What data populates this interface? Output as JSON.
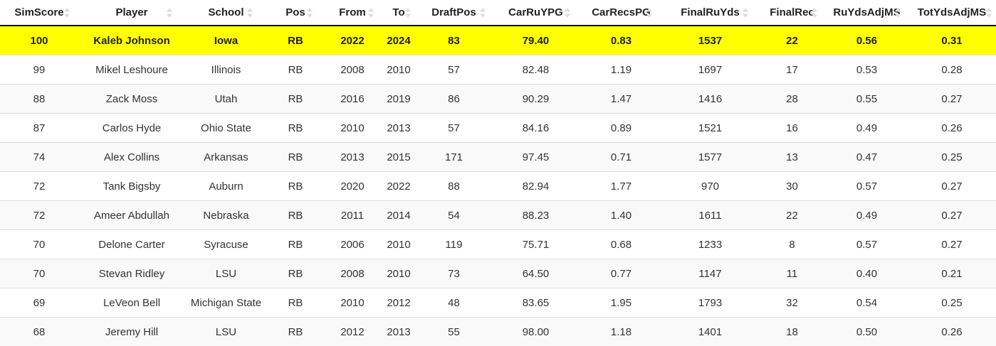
{
  "table": {
    "columns": [
      {
        "key": "simscore",
        "label": "SimScore"
      },
      {
        "key": "player",
        "label": "Player"
      },
      {
        "key": "school",
        "label": "School"
      },
      {
        "key": "pos",
        "label": "Pos"
      },
      {
        "key": "from",
        "label": "From"
      },
      {
        "key": "to",
        "label": "To"
      },
      {
        "key": "draftpos",
        "label": "DraftPos"
      },
      {
        "key": "carruypg",
        "label": "CarRuYPG"
      },
      {
        "key": "carrecspg",
        "label": "CarRecsPG"
      },
      {
        "key": "finalruyds",
        "label": "FinalRuYds"
      },
      {
        "key": "finalrec",
        "label": "FinalRec"
      },
      {
        "key": "ruydsadjms",
        "label": "RuYdsAdjMS"
      },
      {
        "key": "totydsadjms",
        "label": "TotYdsAdjMS"
      }
    ],
    "highlight_color": "#ffff00",
    "rows": [
      [
        "100",
        "Kaleb Johnson",
        "Iowa",
        "RB",
        "2022",
        "2024",
        "83",
        "79.40",
        "0.83",
        "1537",
        "22",
        "0.56",
        "0.31"
      ],
      [
        "99",
        "Mikel Leshoure",
        "Illinois",
        "RB",
        "2008",
        "2010",
        "57",
        "82.48",
        "1.19",
        "1697",
        "17",
        "0.53",
        "0.28"
      ],
      [
        "88",
        "Zack Moss",
        "Utah",
        "RB",
        "2016",
        "2019",
        "86",
        "90.29",
        "1.47",
        "1416",
        "28",
        "0.55",
        "0.27"
      ],
      [
        "87",
        "Carlos Hyde",
        "Ohio State",
        "RB",
        "2010",
        "2013",
        "57",
        "84.16",
        "0.89",
        "1521",
        "16",
        "0.49",
        "0.26"
      ],
      [
        "74",
        "Alex Collins",
        "Arkansas",
        "RB",
        "2013",
        "2015",
        "171",
        "97.45",
        "0.71",
        "1577",
        "13",
        "0.47",
        "0.25"
      ],
      [
        "72",
        "Tank Bigsby",
        "Auburn",
        "RB",
        "2020",
        "2022",
        "88",
        "82.94",
        "1.77",
        "970",
        "30",
        "0.57",
        "0.27"
      ],
      [
        "72",
        "Ameer Abdullah",
        "Nebraska",
        "RB",
        "2011",
        "2014",
        "54",
        "88.23",
        "1.40",
        "1611",
        "22",
        "0.49",
        "0.27"
      ],
      [
        "70",
        "Delone Carter",
        "Syracuse",
        "RB",
        "2006",
        "2010",
        "119",
        "75.71",
        "0.68",
        "1233",
        "8",
        "0.57",
        "0.27"
      ],
      [
        "70",
        "Stevan Ridley",
        "LSU",
        "RB",
        "2008",
        "2010",
        "73",
        "64.50",
        "0.77",
        "1147",
        "11",
        "0.40",
        "0.21"
      ],
      [
        "69",
        "LeVeon Bell",
        "Michigan State",
        "RB",
        "2010",
        "2012",
        "48",
        "83.65",
        "1.95",
        "1793",
        "32",
        "0.54",
        "0.25"
      ],
      [
        "68",
        "Jeremy Hill",
        "LSU",
        "RB",
        "2012",
        "2013",
        "55",
        "98.00",
        "1.18",
        "1401",
        "18",
        "0.50",
        "0.26"
      ]
    ]
  }
}
